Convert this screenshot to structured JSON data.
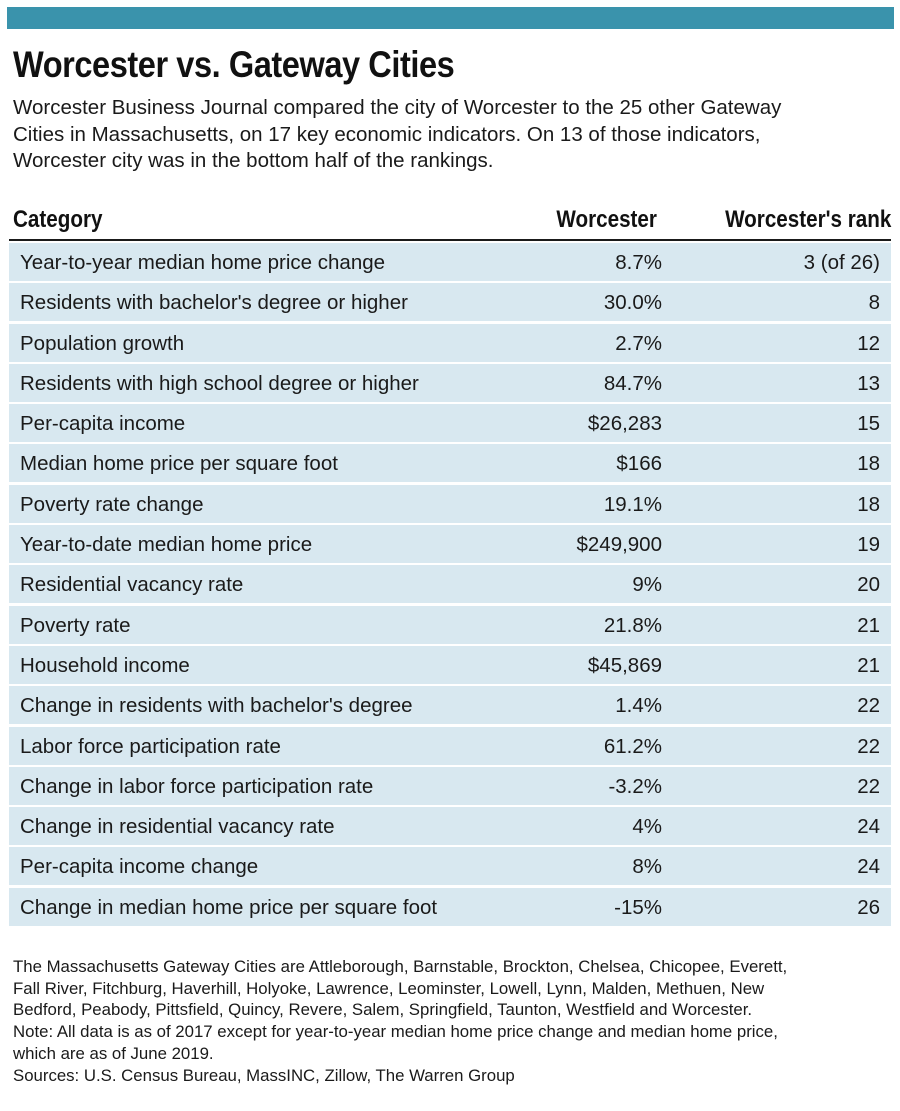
{
  "colors": {
    "accent_bar": "#3a93ac",
    "row_fill": "#d8e8f0"
  },
  "title": "Worcester vs. Gateway Cities",
  "subtitle_lines": [
    "Worcester Business Journal compared the city of Worcester to the 25 other Gateway",
    "Cities in Massachusetts, on 17 key economic indicators. On 13 of those indicators,",
    "Worcester city was in the bottom half of the rankings."
  ],
  "chart_data": {
    "type": "table",
    "columns": [
      "Category",
      "Worcester",
      "Worcester's rank"
    ],
    "rows": [
      [
        "Year-to-year median home price change",
        "8.7%",
        "3 (of 26)"
      ],
      [
        "Residents with bachelor's degree or higher",
        "30.0%",
        "8"
      ],
      [
        "Population growth",
        "2.7%",
        "12"
      ],
      [
        "Residents with high school degree or higher",
        "84.7%",
        "13"
      ],
      [
        "Per-capita income",
        "$26,283",
        "15"
      ],
      [
        "Median home price per square foot",
        "$166",
        "18"
      ],
      [
        "Poverty rate change",
        "19.1%",
        "18"
      ],
      [
        "Year-to-date median home price",
        "$249,900",
        "19"
      ],
      [
        "Residential vacancy rate",
        "9%",
        "20"
      ],
      [
        "Poverty rate",
        "21.8%",
        "21"
      ],
      [
        "Household income",
        "$45,869",
        "21"
      ],
      [
        "Change in residents with bachelor's degree",
        "1.4%",
        "22"
      ],
      [
        "Labor force participation rate",
        "61.2%",
        "22"
      ],
      [
        "Change in labor force participation rate",
        "-3.2%",
        "22"
      ],
      [
        "Change in residential vacancy rate",
        "4%",
        "24"
      ],
      [
        "Per-capita income change",
        "8%",
        "24"
      ],
      [
        "Change in median home price per square foot",
        "-15%",
        "26"
      ]
    ]
  },
  "note_lines": [
    "The Massachusetts Gateway Cities are Attleborough, Barnstable, Brockton, Chelsea, Chicopee, Everett,",
    "Fall River, Fitchburg, Haverhill, Holyoke, Lawrence, Leominster, Lowell, Lynn, Malden, Methuen, New",
    "Bedford, Peabody, Pittsfield, Quincy, Revere, Salem, Springfield, Taunton, Westfield and Worcester.",
    "Note: All data is as of 2017 except for year-to-year median home price change and median home price,",
    "which are as of June 2019.",
    "Sources: U.S. Census Bureau, MassINC, Zillow, The Warren Group"
  ]
}
